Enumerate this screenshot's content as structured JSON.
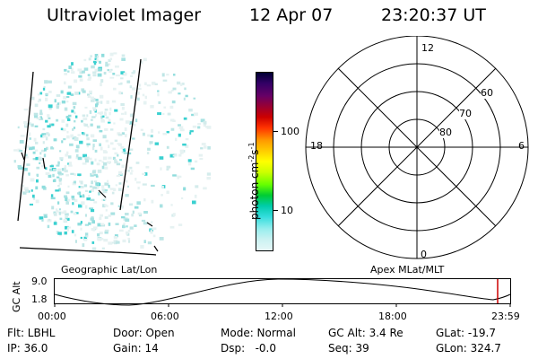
{
  "header": {
    "title": "Ultraviolet Imager",
    "date": "12 Apr 07",
    "time": "23:20:37 UT"
  },
  "colorbar": {
    "unit_label": "photon cm-2s-1",
    "unit_base": "photon cm",
    "unit_sup1": "-2",
    "unit_mid": "s",
    "unit_sup2": "-1",
    "ticks": [
      "100",
      "10"
    ],
    "colors": [
      "#000033",
      "#330066",
      "#660066",
      "#990033",
      "#cc0000",
      "#ff3300",
      "#ff9900",
      "#ffcc00",
      "#ffff00",
      "#ccff00",
      "#66ff00",
      "#00cc33",
      "#00ccaa",
      "#33dddd",
      "#99eeee",
      "#ccf2f2",
      "#e6f7f7"
    ]
  },
  "geo_label": "Geographic Lat/Lon",
  "polar": {
    "label": "Apex MLat/MLT",
    "mlt_labels": {
      "top": "12",
      "bottom": "0",
      "left": "18",
      "right": "6"
    },
    "lat_labels": [
      "60",
      "70",
      "80"
    ]
  },
  "timeline": {
    "axis_label": "GC Alt",
    "y_ticks": [
      "9.0",
      "1.8"
    ],
    "x_ticks": [
      "00:00",
      "06:00",
      "12:00",
      "18:00",
      "23:59"
    ],
    "marker_color": "#cc0000"
  },
  "info": {
    "row1": [
      "Flt: LBHL",
      "Door: Open",
      "Mode: Normal",
      "GC Alt: 3.4 Re",
      "GLat: -19.7"
    ],
    "row2": [
      "IP: 36.0",
      "Gain: 14",
      "Dsp:   -0.0",
      "Seq: 39",
      "GLon: 324.7"
    ]
  }
}
